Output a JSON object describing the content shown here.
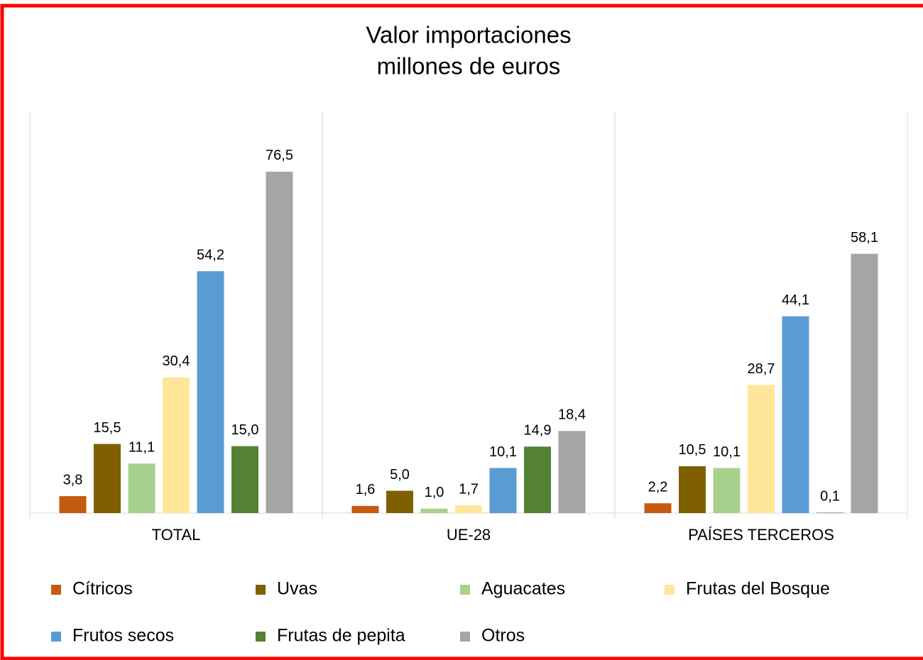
{
  "chart_data": {
    "type": "bar",
    "title": [
      "Valor importaciones",
      "millones de euros"
    ],
    "categories": [
      "TOTAL",
      "UE-28",
      "PAÍSES TERCEROS"
    ],
    "ylim": [
      0,
      90
    ],
    "legend": "bottom",
    "series": [
      {
        "name": "Cítricos",
        "color": "#c55a11",
        "values": [
          3.8,
          1.6,
          2.2
        ],
        "value_labels": [
          "3,8",
          "1,6",
          "2,2"
        ]
      },
      {
        "name": "Uvas",
        "color": "#7f6000",
        "values": [
          15.5,
          5.0,
          10.5
        ],
        "value_labels": [
          "15,5",
          "5,0",
          "10,5"
        ]
      },
      {
        "name": "Aguacates",
        "color": "#a9d18e",
        "values": [
          11.1,
          1.0,
          10.1
        ],
        "value_labels": [
          "11,1",
          "1,0",
          "10,1"
        ]
      },
      {
        "name": "Frutas del Bosque",
        "color": "#ffe699",
        "values": [
          30.4,
          1.7,
          28.7
        ],
        "value_labels": [
          "30,4",
          "1,7",
          "28,7"
        ]
      },
      {
        "name": "Frutos secos",
        "color": "#5b9bd5",
        "values": [
          54.2,
          10.1,
          44.1
        ],
        "value_labels": [
          "54,2",
          "10,1",
          "44,1"
        ]
      },
      {
        "name": "Frutas de pepita",
        "color": "#548235",
        "values": [
          15.0,
          14.9,
          0.1
        ],
        "value_labels": [
          "15,0",
          "14,9",
          "0,1"
        ]
      },
      {
        "name": "Otros",
        "color": "#a5a5a5",
        "values": [
          76.5,
          18.4,
          58.1
        ],
        "value_labels": [
          "76,5",
          "18,4",
          "58,1"
        ]
      }
    ]
  }
}
